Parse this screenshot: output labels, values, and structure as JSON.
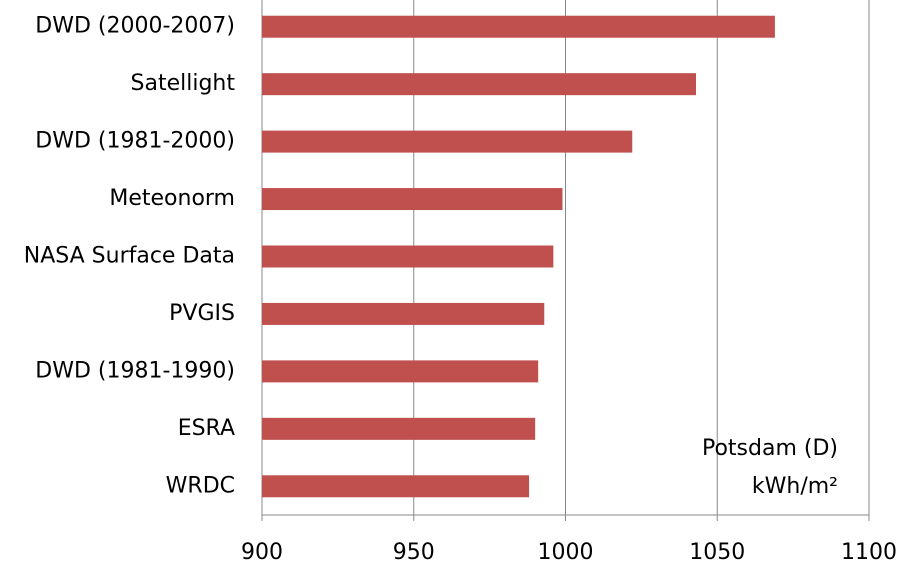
{
  "chart_data": {
    "type": "bar",
    "orientation": "horizontal",
    "categories": [
      "DWD (2000-2007)",
      "Satellight",
      "DWD (1981-2000)",
      "Meteonorm",
      "NASA Surface Data",
      "PVGIS",
      "DWD (1981-1990)",
      "ESRA",
      "WRDC"
    ],
    "values": [
      1069,
      1043,
      1022,
      999,
      996,
      993,
      991,
      990,
      988
    ],
    "color": "#c0504d",
    "xlim": [
      900,
      1100
    ],
    "xticks": [
      900,
      950,
      1000,
      1050,
      1100
    ],
    "grid": true,
    "annotations": [
      "Potsdam (D)",
      "kWh/m²"
    ]
  }
}
